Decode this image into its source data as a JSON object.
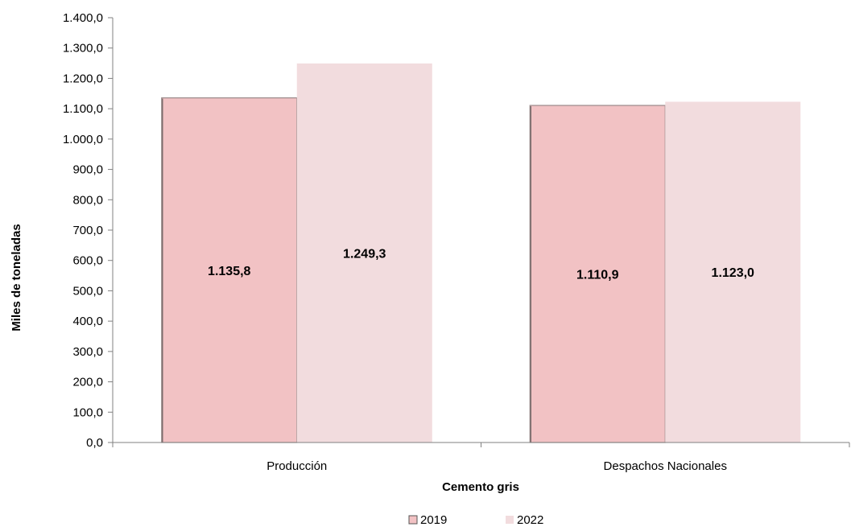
{
  "chart_data": {
    "type": "bar",
    "categories": [
      "Producción",
      "Despachos Nacionales"
    ],
    "series": [
      {
        "name": "2019",
        "values": [
          1135.8,
          1110.9
        ],
        "labels": [
          "1.135,8",
          "1.110,9"
        ],
        "color": "#f2c2c4"
      },
      {
        "name": "2022",
        "values": [
          1249.3,
          1123.0
        ],
        "labels": [
          "1.249,3",
          "1.123,0"
        ],
        "color": "#f2dcde"
      }
    ],
    "xlabel": "Cemento gris",
    "ylabel": "Miles de toneladas",
    "ylim": [
      0,
      1400
    ],
    "ytick_step": 100,
    "ytick_labels": [
      "0,0",
      "100,0",
      "200,0",
      "300,0",
      "400,0",
      "500,0",
      "600,0",
      "700,0",
      "800,0",
      "900,0",
      "1.000,0",
      "1.100,0",
      "1.200,0",
      "1.300,0",
      "1.400,0"
    ],
    "grid": false,
    "legend_position": "bottom-center"
  }
}
